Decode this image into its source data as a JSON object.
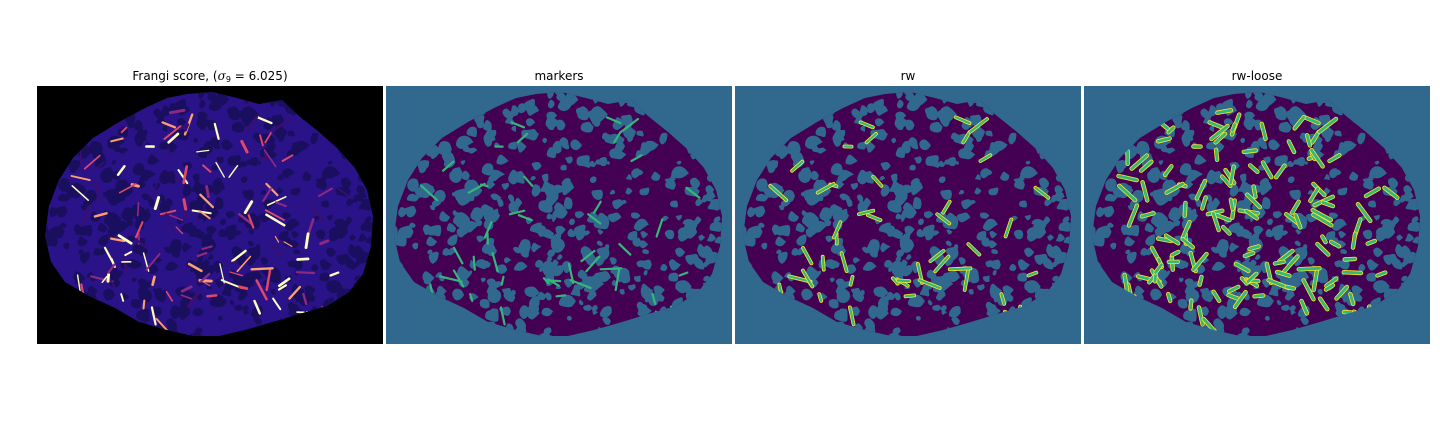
{
  "panels": [
    {
      "title_prefix": "Frangi score, (",
      "title_sigma": "σ",
      "title_sub": "9",
      "title_equals": " = 6.025",
      "title_suffix": ")",
      "colormap": "magma",
      "background_color": "#000000",
      "blob_color": "#1a0f5e",
      "ridge_colors": [
        "#3b0f70",
        "#8c2981",
        "#de4968",
        "#fe9f6d",
        "#fcfdbf"
      ]
    },
    {
      "title": "markers",
      "colormap": "viridis",
      "background_color": "#31688e",
      "blob_color": "#440154",
      "marker_color": "#35b779"
    },
    {
      "title": "rw",
      "colormap": "viridis",
      "background_color": "#31688e",
      "blob_color": "#440154",
      "marker_color": "#35b779",
      "outline_color": "#fde725"
    },
    {
      "title": "rw-loose",
      "colormap": "viridis",
      "background_color": "#31688e",
      "blob_color": "#440154",
      "marker_color": "#35b779",
      "outline_color": "#fde725"
    }
  ]
}
